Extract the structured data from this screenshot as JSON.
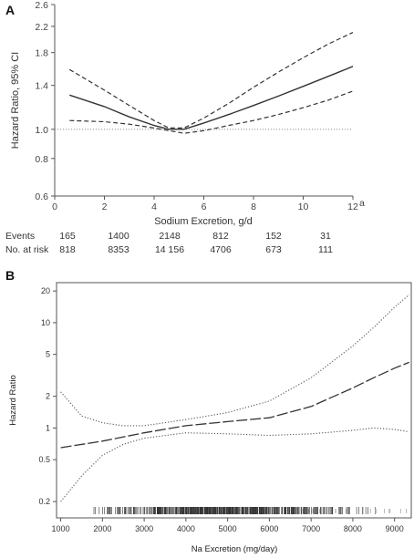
{
  "chart_data": [
    {
      "panel": "A",
      "type": "line",
      "title": "",
      "xlabel": "Sodium Excretion, g/d",
      "ylabel": "Hazard Ratio, 95% CI",
      "x_ticks": [
        "0",
        "2",
        "4",
        "6",
        "8",
        "10",
        "12"
      ],
      "x_tick_superscript": "a",
      "y_ticks": [
        "0.6",
        "0.8",
        "1.0",
        "1.4",
        "1.8",
        "2.2",
        "2.6"
      ],
      "xlim": [
        0,
        12
      ],
      "ylim": [
        0.6,
        2.6
      ],
      "y_scale": "log",
      "reference_line": 1.0,
      "grid": false,
      "series": [
        {
          "role": "estimate",
          "style": "solid",
          "x": [
            0.6,
            2,
            3,
            4,
            4.6,
            5.2,
            6,
            7,
            8,
            9,
            10,
            11,
            12
          ],
          "y": [
            1.3,
            1.19,
            1.1,
            1.03,
            1.0,
            1.0,
            1.05,
            1.12,
            1.2,
            1.29,
            1.39,
            1.5,
            1.62
          ]
        },
        {
          "role": "upper",
          "style": "dashed",
          "x": [
            0.6,
            2,
            3,
            4,
            4.6,
            5.2,
            6,
            7,
            8,
            9,
            10,
            11,
            12
          ],
          "y": [
            1.58,
            1.35,
            1.2,
            1.07,
            1.01,
            1.01,
            1.09,
            1.22,
            1.38,
            1.55,
            1.73,
            1.92,
            2.1
          ]
        },
        {
          "role": "lower",
          "style": "dashed",
          "x": [
            0.6,
            2,
            3,
            4,
            4.6,
            5.2,
            6,
            7,
            8,
            9,
            10,
            11,
            12
          ],
          "y": [
            1.07,
            1.06,
            1.04,
            1.01,
            0.99,
            0.97,
            0.99,
            1.03,
            1.07,
            1.12,
            1.18,
            1.25,
            1.34
          ]
        }
      ],
      "risk_table": {
        "rows": [
          {
            "label": "Events",
            "values": [
              "165",
              "1400",
              "2148",
              "812",
              "152",
              "31"
            ]
          },
          {
            "label": "No. at risk",
            "values": [
              "818",
              "8353",
              "14 156",
              "4706",
              "673",
              "111"
            ]
          }
        ]
      }
    },
    {
      "panel": "B",
      "type": "line",
      "title": "",
      "xlabel": "Na Excretion (mg/day)",
      "ylabel": "Hazard Ratio",
      "x_ticks": [
        "1000",
        "2000",
        "3000",
        "4000",
        "5000",
        "6000",
        "7000",
        "8000",
        "9000"
      ],
      "y_ticks": [
        "0.2",
        "0.5",
        "1",
        "2",
        "5",
        "10",
        "20"
      ],
      "xlim": [
        900,
        9400
      ],
      "ylim": [
        0.14,
        24
      ],
      "y_scale": "log",
      "grid": false,
      "rug": true,
      "series": [
        {
          "role": "estimate",
          "style": "long-dash",
          "x": [
            1000,
            2000,
            3000,
            4000,
            5000,
            6000,
            7000,
            8000,
            8500,
            9000,
            9350
          ],
          "y": [
            0.65,
            0.75,
            0.9,
            1.05,
            1.15,
            1.25,
            1.6,
            2.4,
            3.0,
            3.7,
            4.2
          ]
        },
        {
          "role": "upper",
          "style": "dotted",
          "x": [
            1000,
            1500,
            2000,
            2500,
            3000,
            4000,
            5000,
            6000,
            7000,
            8000,
            8500,
            9000,
            9350
          ],
          "y": [
            2.2,
            1.3,
            1.12,
            1.05,
            1.05,
            1.2,
            1.4,
            1.8,
            3.0,
            6.0,
            9.0,
            14.0,
            18.5
          ]
        },
        {
          "role": "lower",
          "style": "dotted",
          "x": [
            1000,
            1500,
            2000,
            2500,
            3000,
            4000,
            5000,
            6000,
            7000,
            8000,
            8500,
            9000,
            9350
          ],
          "y": [
            0.2,
            0.35,
            0.55,
            0.7,
            0.8,
            0.9,
            0.88,
            0.85,
            0.88,
            0.95,
            1.0,
            0.97,
            0.92
          ]
        }
      ]
    }
  ]
}
